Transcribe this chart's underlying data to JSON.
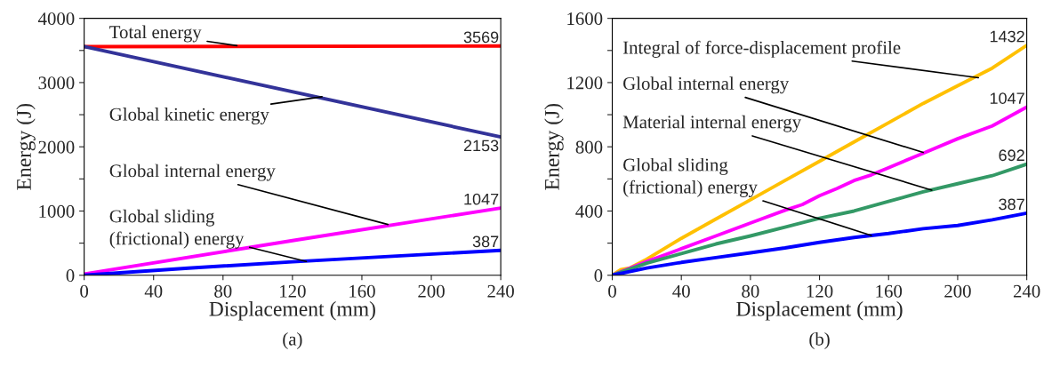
{
  "chart_data": [
    {
      "type": "line",
      "xlabel": "Displacement (mm)",
      "ylabel": "Energy (J)",
      "xlim": [
        0,
        240
      ],
      "xticks": [
        0,
        40,
        80,
        120,
        160,
        200,
        240
      ],
      "ylim": [
        0,
        4000
      ],
      "yticks": [
        0,
        {
          "value": 500,
          "label": null
        },
        1000,
        {
          "value": 1500,
          "label": null
        },
        2000,
        {
          "value": 2500,
          "label": null
        },
        3000,
        {
          "value": 3500,
          "label": null
        },
        4000
      ],
      "grid": false,
      "legend": false,
      "marker": "none",
      "line_style": "solid",
      "series": [
        {
          "color": "#ff0000",
          "x": [
            0,
            240
          ],
          "values": [
            3560,
            3569
          ],
          "value_labels": [
            null,
            "3569"
          ]
        },
        {
          "color": "#333399",
          "x": [
            0,
            240
          ],
          "values": [
            3560,
            2153
          ],
          "value_labels": [
            null,
            "2153"
          ]
        },
        {
          "color": "#ff00ff",
          "x": [
            0,
            120,
            240
          ],
          "values": [
            20,
            540,
            1047
          ],
          "value_labels": [
            null,
            null,
            "1047"
          ]
        },
        {
          "color": "#0000ff",
          "x": [
            0,
            60,
            120,
            180,
            240
          ],
          "values": [
            0,
            110,
            210,
            300,
            387
          ],
          "value_labels": [
            null,
            null,
            null,
            null,
            "387"
          ]
        }
      ],
      "annotations": [
        {
          "text": "Total energy",
          "x": 88,
          "y": 3575
        },
        {
          "text": "Global kinetic energy",
          "x": 137,
          "y": 2780
        },
        {
          "text": "Global internal energy",
          "x": 175,
          "y": 790
        },
        {
          "text": "Global sliding\n(frictional) energy",
          "x": 128,
          "y": 215
        },
        "(a)"
      ]
    },
    {
      "type": "line",
      "xlabel": "Displacement (mm)",
      "ylabel": "Energy (J)",
      "xlim": [
        0,
        240
      ],
      "xticks": [
        0,
        40,
        80,
        120,
        160,
        200,
        240
      ],
      "ylim": [
        0,
        1600
      ],
      "yticks": [
        0,
        {
          "value": 200,
          "label": null
        },
        400,
        {
          "value": 600,
          "label": null
        },
        800,
        {
          "value": 1000,
          "label": null
        },
        1200,
        {
          "value": 1400,
          "label": null
        },
        1600
      ],
      "grid": false,
      "legend": false,
      "marker": "none",
      "line_style": "solid",
      "series": [
        {
          "color": "#ffc000",
          "x": [
            0,
            5,
            10,
            20,
            40,
            60,
            80,
            100,
            120,
            140,
            160,
            180,
            200,
            220,
            240
          ],
          "values": [
            0,
            35,
            45,
            100,
            230,
            350,
            470,
            590,
            710,
            830,
            950,
            1070,
            1180,
            1290,
            1432
          ],
          "value_labels": [
            null,
            null,
            null,
            null,
            null,
            null,
            null,
            null,
            null,
            null,
            null,
            null,
            null,
            null,
            "1432"
          ]
        },
        {
          "color": "#ff00ff",
          "x": [
            0,
            20,
            40,
            60,
            80,
            100,
            110,
            120,
            130,
            140,
            150,
            160,
            180,
            200,
            220,
            240
          ],
          "values": [
            0,
            85,
            165,
            245,
            325,
            405,
            440,
            495,
            540,
            590,
            625,
            670,
            760,
            850,
            930,
            1047
          ],
          "value_labels": [
            null,
            null,
            null,
            null,
            null,
            null,
            null,
            null,
            null,
            null,
            null,
            null,
            null,
            null,
            null,
            "1047"
          ]
        },
        {
          "color": "#339966",
          "x": [
            0,
            20,
            40,
            60,
            80,
            100,
            120,
            140,
            160,
            180,
            200,
            220,
            240
          ],
          "values": [
            0,
            75,
            135,
            195,
            245,
            300,
            355,
            400,
            460,
            520,
            570,
            620,
            692
          ],
          "value_labels": [
            null,
            null,
            null,
            null,
            null,
            null,
            null,
            null,
            null,
            null,
            null,
            null,
            "692"
          ]
        },
        {
          "color": "#0000ff",
          "x": [
            0,
            20,
            40,
            60,
            80,
            100,
            120,
            140,
            160,
            180,
            200,
            220,
            240
          ],
          "values": [
            0,
            45,
            80,
            110,
            140,
            170,
            205,
            235,
            260,
            290,
            310,
            345,
            387
          ],
          "value_labels": [
            null,
            null,
            null,
            null,
            null,
            null,
            null,
            null,
            null,
            null,
            null,
            null,
            "387"
          ]
        }
      ],
      "annotations": [
        {
          "text": "Integral of force-displacement profile",
          "x": 212,
          "y": 1230
        },
        {
          "text": "Global internal energy",
          "x": 180,
          "y": 765
        },
        {
          "text": "Material internal energy",
          "x": 185,
          "y": 530
        },
        {
          "text": "Global sliding\n(frictional) energy",
          "x": 150,
          "y": 248
        },
        "(b)"
      ]
    }
  ]
}
